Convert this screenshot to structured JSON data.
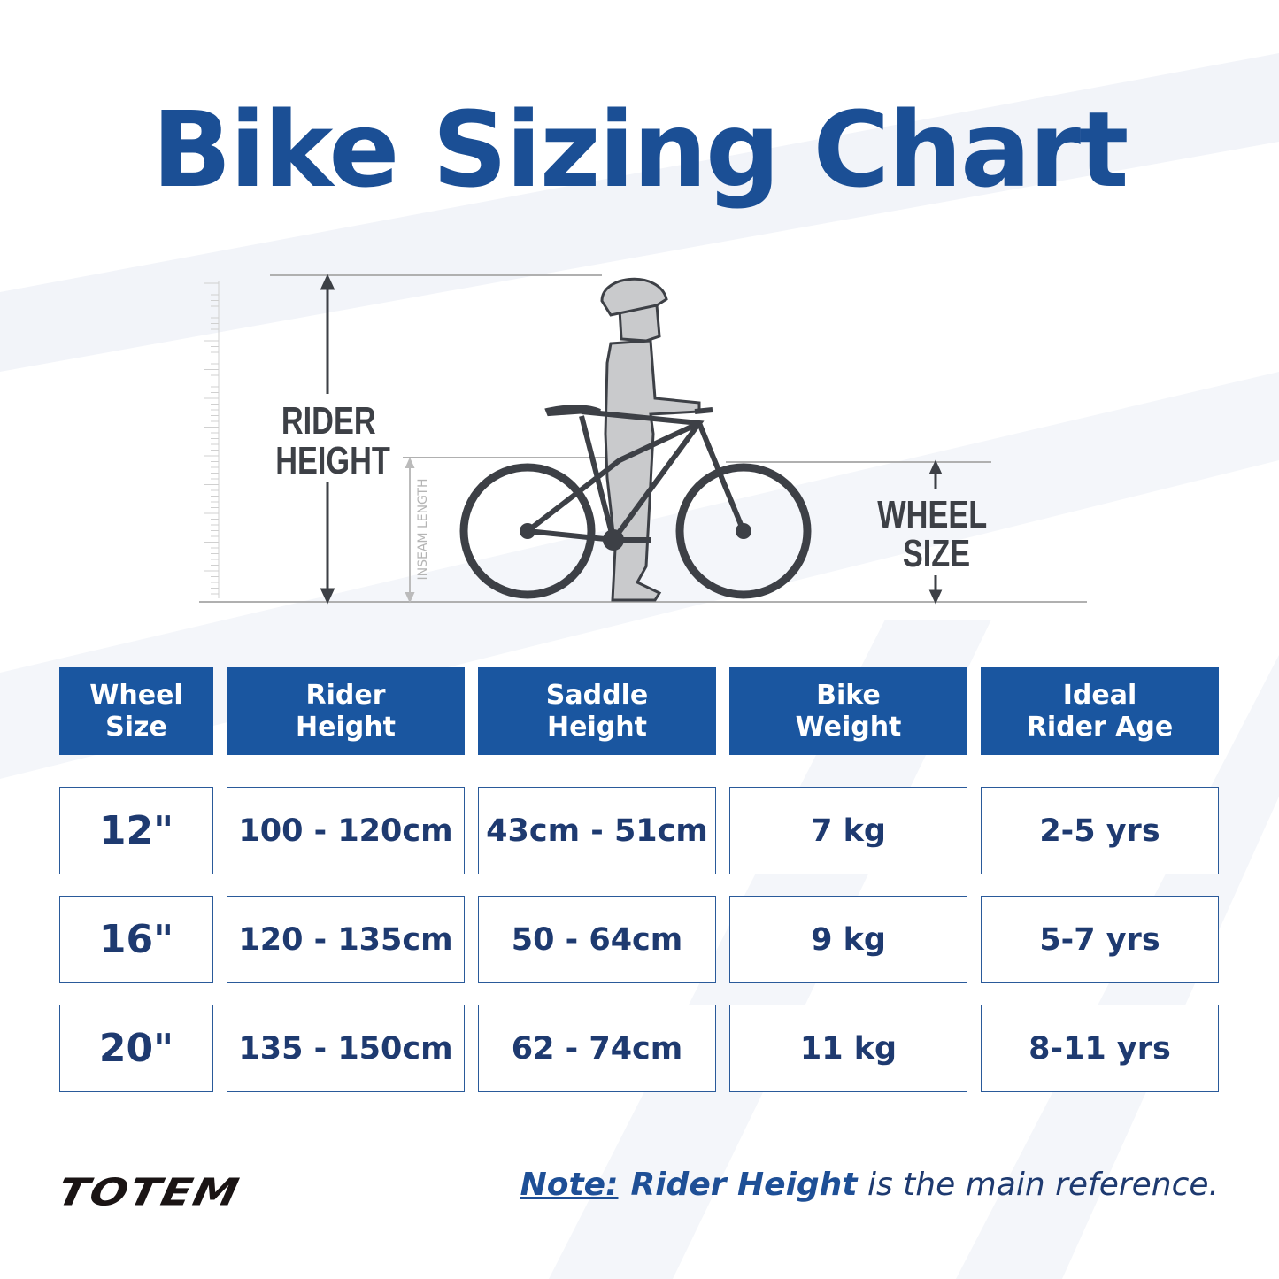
{
  "title": "Bike Sizing Chart",
  "diagram": {
    "rider_height_label": [
      "RIDER",
      "HEIGHT"
    ],
    "inseam_label": "INSEAM LENGTH",
    "wheel_size_label": [
      "WHEEL",
      "SIZE"
    ]
  },
  "table": {
    "headers": [
      [
        "Wheel",
        "Size"
      ],
      [
        "Rider",
        "Height"
      ],
      [
        "Saddle",
        "Height"
      ],
      [
        "Bike",
        "Weight"
      ],
      [
        "Ideal",
        "Rider Age"
      ]
    ],
    "rows": [
      [
        "12\"",
        "100 - 120cm",
        "43cm - 51cm",
        "7 kg",
        "2-5 yrs"
      ],
      [
        "16\"",
        "120 - 135cm",
        "50 - 64cm",
        "9 kg",
        "5-7 yrs"
      ],
      [
        "20\"",
        "135 - 150cm",
        "62 - 74cm",
        "11 kg",
        "8-11 yrs"
      ]
    ]
  },
  "brand": "TOTEM",
  "note": {
    "prefix": "Note:",
    "bold": "Rider Height",
    "rest": " is the main reference."
  },
  "colors": {
    "header_bg": "#1a56a0",
    "title": "#1b4f95",
    "text": "#1e3a70"
  }
}
